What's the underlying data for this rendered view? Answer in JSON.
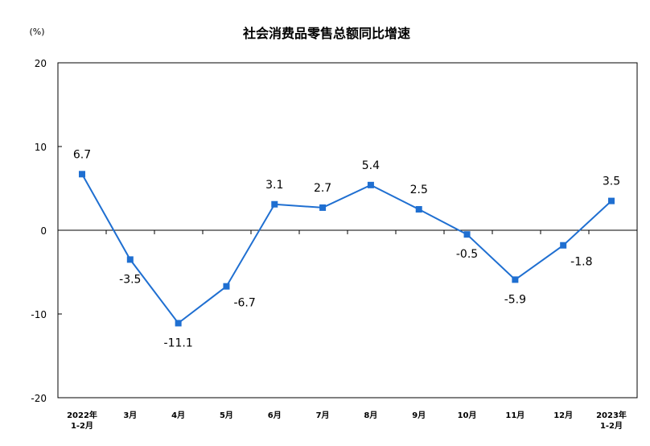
{
  "chart_data": {
    "type": "line",
    "title": "社会消费品零售总额同比增速",
    "unit_label": "(%)",
    "categories": [
      [
        "2022年",
        "1-2月"
      ],
      [
        "3月"
      ],
      [
        "4月"
      ],
      [
        "5月"
      ],
      [
        "6月"
      ],
      [
        "7月"
      ],
      [
        "8月"
      ],
      [
        "9月"
      ],
      [
        "10月"
      ],
      [
        "11月"
      ],
      [
        "12月"
      ],
      [
        "2023年",
        "1-2月"
      ]
    ],
    "series": [
      {
        "values": [
          6.7,
          -3.5,
          -11.1,
          -6.7,
          3.1,
          2.7,
          5.4,
          2.5,
          -0.5,
          -5.9,
          -1.8,
          3.5
        ],
        "labels": [
          "6.7",
          "-3.5",
          "-11.1",
          "-6.7",
          "3.1",
          "2.7",
          "5.4",
          "2.5",
          "-0.5",
          "-5.9",
          "-1.8",
          "3.5"
        ],
        "label_position": [
          "above",
          "below",
          "below",
          "right",
          "above",
          "above",
          "above",
          "above",
          "below",
          "below",
          "right",
          "above"
        ]
      }
    ],
    "yticks": [
      20,
      10,
      0,
      -10,
      -20
    ],
    "ylim": [
      -20,
      20
    ],
    "colors": {
      "line": "#1f6fd1",
      "axis": "#000000"
    },
    "grid": false,
    "legend": "none"
  }
}
